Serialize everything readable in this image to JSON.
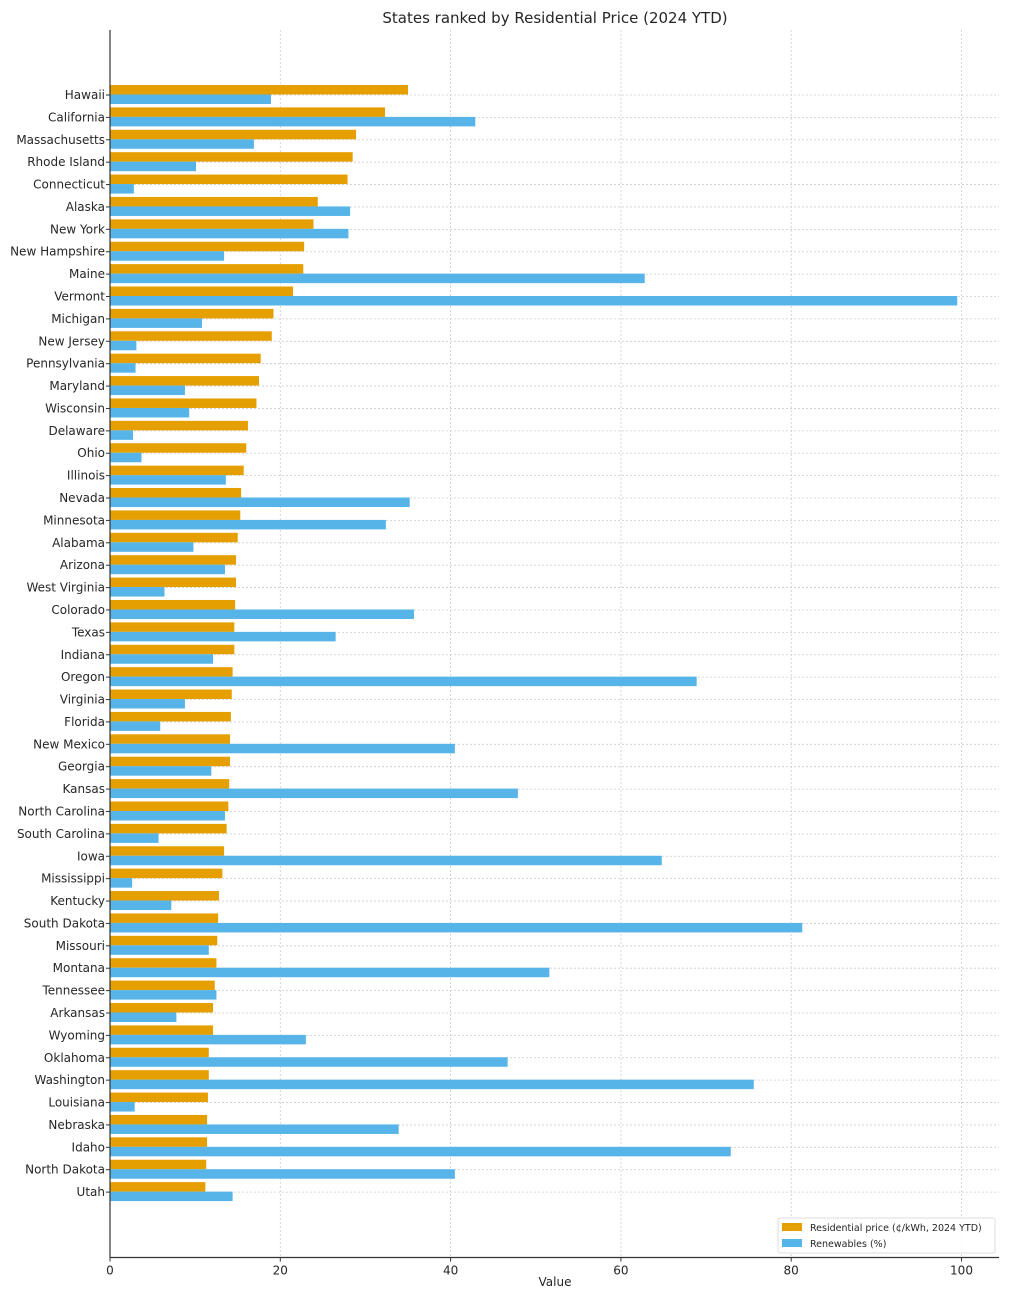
{
  "chart_data": {
    "type": "bar",
    "orientation": "horizontal",
    "title": "States ranked by Residential Price (2024 YTD)",
    "xlabel": "Value",
    "ylabel": "",
    "xlim": [
      0,
      104.5
    ],
    "xticks": [
      0,
      20,
      40,
      60,
      80,
      100
    ],
    "xtick_labels": [
      "0",
      "20",
      "40",
      "60",
      "80",
      "100"
    ],
    "grid": true,
    "legend_position": "bottom-right",
    "categories": [
      "Hawaii",
      "California",
      "Massachusetts",
      "Rhode Island",
      "Connecticut",
      "Alaska",
      "New York",
      "New Hampshire",
      "Maine",
      "Vermont",
      "Michigan",
      "New Jersey",
      "Pennsylvania",
      "Maryland",
      "Wisconsin",
      "Delaware",
      "Ohio",
      "Illinois",
      "Nevada",
      "Minnesota",
      "Alabama",
      "Arizona",
      "West Virginia",
      "Colorado",
      "Texas",
      "Indiana",
      "Oregon",
      "Virginia",
      "Florida",
      "New Mexico",
      "Georgia",
      "Kansas",
      "North Carolina",
      "South Carolina",
      "Iowa",
      "Mississippi",
      "Kentucky",
      "South Dakota",
      "Missouri",
      "Montana",
      "Tennessee",
      "Arkansas",
      "Wyoming",
      "Oklahoma",
      "Washington",
      "Louisiana",
      "Nebraska",
      "Idaho",
      "North Dakota",
      "Utah"
    ],
    "series": [
      {
        "name": "Residential price (¢/kWh, 2024 YTD)",
        "color": "#E69F00",
        "values": [
          35.0,
          32.3,
          28.9,
          28.5,
          27.9,
          24.4,
          23.9,
          22.8,
          22.7,
          21.5,
          19.2,
          19.0,
          17.7,
          17.5,
          17.2,
          16.2,
          16.0,
          15.7,
          15.4,
          15.3,
          15.0,
          14.8,
          14.8,
          14.7,
          14.6,
          14.6,
          14.4,
          14.3,
          14.2,
          14.1,
          14.1,
          14.0,
          13.9,
          13.7,
          13.4,
          13.2,
          12.8,
          12.7,
          12.6,
          12.5,
          12.3,
          12.1,
          12.1,
          11.6,
          11.6,
          11.5,
          11.4,
          11.4,
          11.3,
          11.2
        ]
      },
      {
        "name": "Renewables (%)",
        "color": "#56B4E9",
        "values": [
          18.9,
          42.9,
          16.9,
          10.1,
          2.8,
          28.2,
          28.0,
          13.4,
          62.8,
          99.5,
          10.8,
          3.1,
          3.0,
          8.8,
          9.3,
          2.7,
          3.7,
          13.6,
          35.2,
          32.4,
          9.8,
          13.5,
          6.4,
          35.7,
          26.5,
          12.1,
          68.9,
          8.8,
          5.9,
          40.5,
          11.9,
          47.9,
          13.5,
          5.7,
          64.8,
          2.6,
          7.2,
          81.3,
          11.6,
          51.6,
          12.5,
          7.8,
          23.0,
          46.7,
          75.6,
          2.9,
          33.9,
          72.9,
          40.5,
          14.4
        ]
      }
    ]
  }
}
